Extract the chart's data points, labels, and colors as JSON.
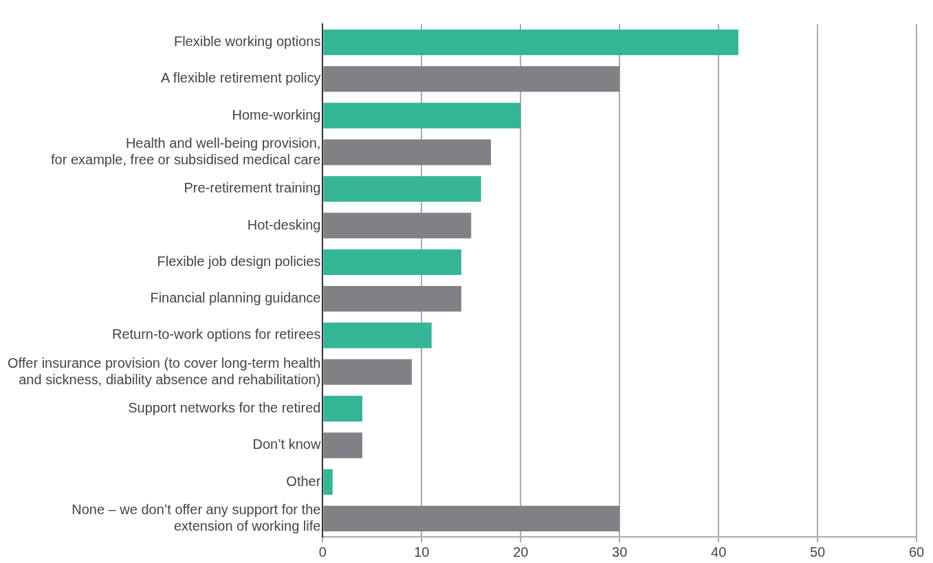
{
  "chart_data": {
    "type": "bar",
    "orientation": "horizontal",
    "categories": [
      "Flexible working options",
      "A flexible retirement policy",
      "Home-working",
      "Health and well-being provision,\nfor example, free or subsidised medical care",
      "Pre-retirement training",
      "Hot-desking",
      "Flexible job design policies",
      "Financial planning guidance",
      "Return-to-work options for retirees",
      "Offer insurance provision (to cover long-term health\nand sickness, diability absence and rehabilitation)",
      "Support networks for the retired",
      "Don’t know",
      "Other",
      "None – we don’t offer any support for the\nextension of working life"
    ],
    "values": [
      42,
      30,
      20,
      17,
      16,
      15,
      14,
      14,
      11,
      9,
      4,
      4,
      1,
      30
    ],
    "colors": [
      "#33b596",
      "#808184",
      "#33b596",
      "#808184",
      "#33b596",
      "#808184",
      "#33b596",
      "#808184",
      "#33b596",
      "#808184",
      "#33b596",
      "#808184",
      "#33b596",
      "#808184"
    ],
    "xlim": [
      0,
      60
    ],
    "xticks": [
      0,
      10,
      20,
      30,
      40,
      50,
      60
    ],
    "grid": "x",
    "legend": false
  }
}
